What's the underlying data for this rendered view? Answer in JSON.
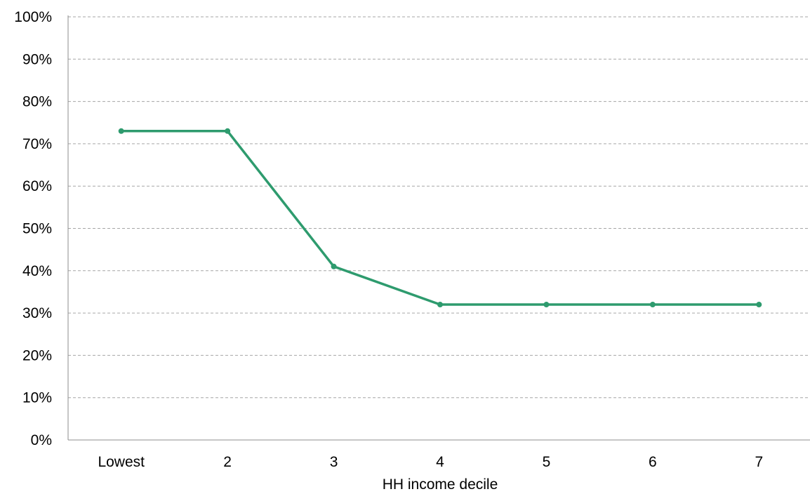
{
  "chart_data": {
    "type": "line",
    "title": "",
    "xlabel": "HH income decile",
    "ylabel": "",
    "categories": [
      "Lowest",
      "2",
      "3",
      "4",
      "5",
      "6",
      "7"
    ],
    "series": [
      {
        "values": [
          73,
          73,
          41,
          32,
          32,
          32,
          32
        ],
        "color": "#2e9b6e"
      }
    ],
    "ylim": [
      0,
      100
    ],
    "y_ticks": [
      0,
      10,
      20,
      30,
      40,
      50,
      60,
      70,
      80,
      90,
      100
    ],
    "y_tick_labels": [
      "0%",
      "10%",
      "20%",
      "30%",
      "40%",
      "50%",
      "60%",
      "70%",
      "80%",
      "90%",
      "100%"
    ],
    "grid": true,
    "grid_style": "dashed horizontal",
    "markers": true,
    "legend": "none"
  }
}
